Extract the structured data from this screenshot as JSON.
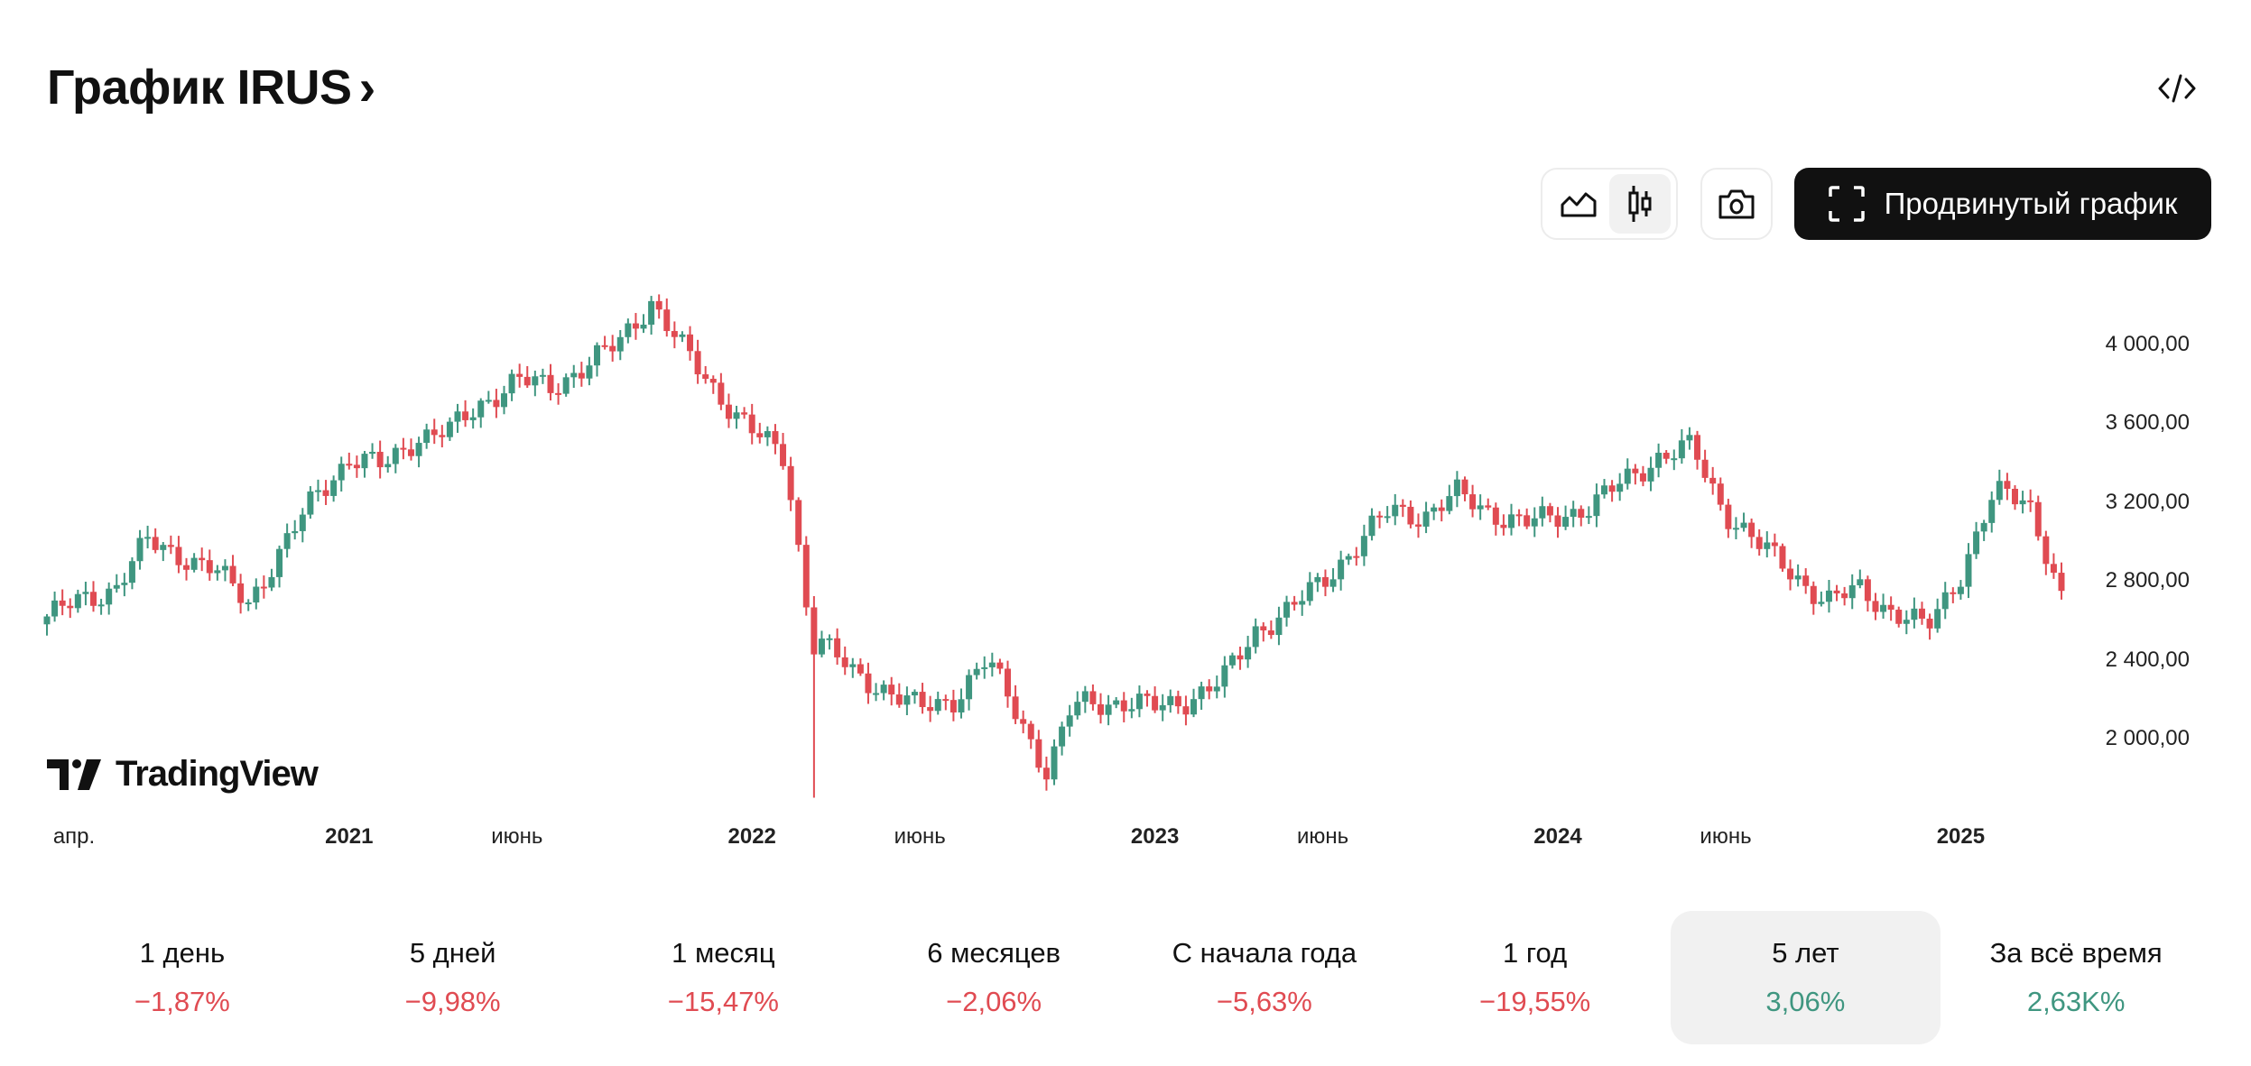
{
  "header": {
    "title": "График IRUS",
    "chevron": "›"
  },
  "toolbar": {
    "advanced_label": "Продвинутый график",
    "icons": [
      "area-chart-icon",
      "candles-icon",
      "camera-icon",
      "fullscreen-icon",
      "code-icon"
    ]
  },
  "brand": "TradingView",
  "colors": {
    "up": "#3f9680",
    "down": "#e04b52"
  },
  "chart_data": {
    "type": "candlestick",
    "title": "IRUS",
    "y_ticks": [
      {
        "v": 4000,
        "label": "4 000,00"
      },
      {
        "v": 3600,
        "label": "3 600,00"
      },
      {
        "v": 3200,
        "label": "3 200,00"
      },
      {
        "v": 2800,
        "label": "2 800,00"
      },
      {
        "v": 2400,
        "label": "2 400,00"
      },
      {
        "v": 2000,
        "label": "2 000,00"
      }
    ],
    "x_ticks": [
      {
        "m": 0,
        "label": "апр.",
        "bold": false
      },
      {
        "m": 9,
        "label": "2021",
        "bold": true
      },
      {
        "m": 14,
        "label": "июнь",
        "bold": false
      },
      {
        "m": 21,
        "label": "2022",
        "bold": true
      },
      {
        "m": 26,
        "label": "июнь",
        "bold": false
      },
      {
        "m": 33,
        "label": "2023",
        "bold": true
      },
      {
        "m": 38,
        "label": "июнь",
        "bold": false
      },
      {
        "m": 45,
        "label": "2024",
        "bold": true
      },
      {
        "m": 50,
        "label": "июнь",
        "bold": false
      },
      {
        "m": 57,
        "label": "2025",
        "bold": true
      }
    ],
    "x_unit": "months since Apr 2020",
    "close_anchors": [
      [
        0,
        2620
      ],
      [
        1,
        2700
      ],
      [
        2,
        2760
      ],
      [
        3,
        3000
      ],
      [
        4,
        2930
      ],
      [
        5,
        2850
      ],
      [
        6,
        2700
      ],
      [
        7,
        2950
      ],
      [
        8,
        3240
      ],
      [
        9,
        3420
      ],
      [
        10,
        3380
      ],
      [
        11,
        3530
      ],
      [
        12,
        3560
      ],
      [
        13,
        3710
      ],
      [
        14,
        3820
      ],
      [
        15,
        3780
      ],
      [
        16,
        3890
      ],
      [
        17,
        4000
      ],
      [
        18,
        4220
      ],
      [
        19,
        3960
      ],
      [
        20,
        3750
      ],
      [
        21,
        3560
      ],
      [
        22,
        3420
      ],
      [
        22.8,
        2480
      ],
      [
        23,
        2500
      ],
      [
        24,
        2330
      ],
      [
        25,
        2250
      ],
      [
        26,
        2150
      ],
      [
        27,
        2200
      ],
      [
        28,
        2400
      ],
      [
        29,
        2100
      ],
      [
        29.8,
        1820
      ],
      [
        30.5,
        2150
      ],
      [
        31,
        2190
      ],
      [
        32,
        2180
      ],
      [
        33,
        2160
      ],
      [
        34,
        2200
      ],
      [
        35,
        2290
      ],
      [
        36,
        2550
      ],
      [
        37,
        2650
      ],
      [
        38,
        2800
      ],
      [
        39,
        2980
      ],
      [
        40,
        3160
      ],
      [
        41,
        3130
      ],
      [
        42,
        3240
      ],
      [
        43,
        3150
      ],
      [
        44,
        3090
      ],
      [
        45,
        3130
      ],
      [
        46,
        3180
      ],
      [
        47,
        3310
      ],
      [
        48,
        3430
      ],
      [
        49,
        3480
      ],
      [
        49.5,
        3300
      ],
      [
        50,
        3150
      ],
      [
        51,
        2980
      ],
      [
        52,
        2840
      ],
      [
        53,
        2690
      ],
      [
        54,
        2760
      ],
      [
        55,
        2640
      ],
      [
        56,
        2560
      ],
      [
        57,
        2840
      ],
      [
        58,
        3240
      ],
      [
        59,
        3220
      ],
      [
        59.6,
        2920
      ],
      [
        60,
        2700
      ]
    ],
    "y_range": [
      1700,
      4300
    ]
  },
  "periods": [
    {
      "label": "1 день",
      "value": "−1,87%",
      "sign": "neg"
    },
    {
      "label": "5 дней",
      "value": "−9,98%",
      "sign": "neg"
    },
    {
      "label": "1 месяц",
      "value": "−15,47%",
      "sign": "neg"
    },
    {
      "label": "6 месяцев",
      "value": "−2,06%",
      "sign": "neg"
    },
    {
      "label": "С начала года",
      "value": "−5,63%",
      "sign": "neg"
    },
    {
      "label": "1 год",
      "value": "−19,55%",
      "sign": "neg"
    },
    {
      "label": "5 лет",
      "value": "3,06%",
      "sign": "pos",
      "active": true
    },
    {
      "label": "За всё время",
      "value": "2,63K%",
      "sign": "pos"
    }
  ]
}
